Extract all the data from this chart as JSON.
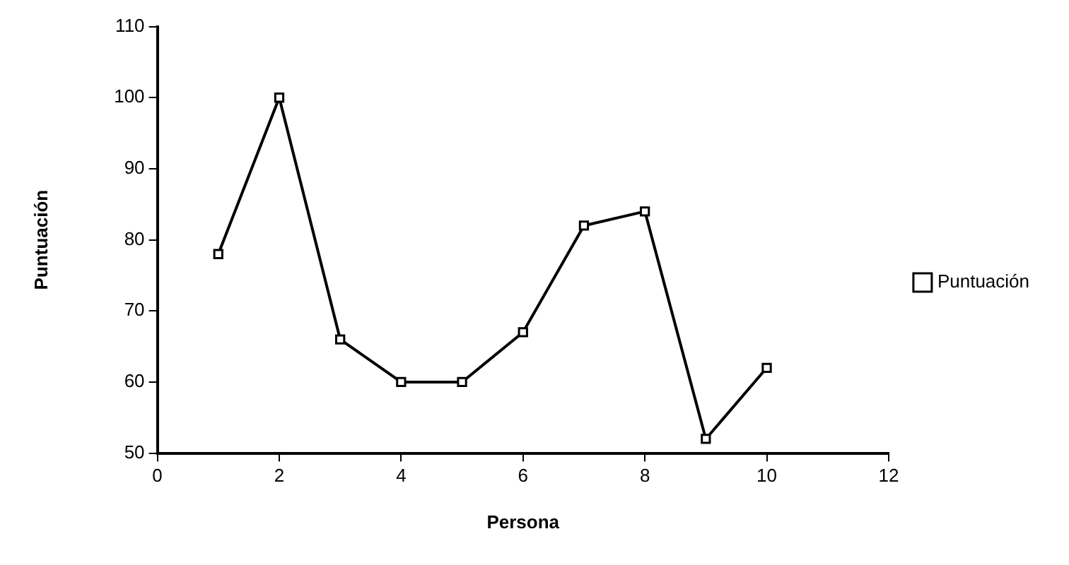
{
  "chart_data": {
    "type": "line",
    "xlabel": "Persona",
    "ylabel": "Puntuación",
    "x": [
      1,
      2,
      3,
      4,
      5,
      6,
      7,
      8,
      9,
      10
    ],
    "series": [
      {
        "name": "Puntuación",
        "color": "#000000",
        "values": [
          78,
          100,
          66,
          60,
          60,
          67,
          82,
          84,
          52,
          62
        ]
      }
    ],
    "xlim": [
      0,
      12
    ],
    "xticks": [
      0,
      2,
      4,
      6,
      8,
      10,
      12
    ],
    "ylim": [
      50,
      110
    ],
    "yticks": [
      50,
      60,
      70,
      80,
      90,
      100,
      110
    ],
    "grid": false,
    "legend": "right",
    "marker": "square",
    "line_style": "solid"
  }
}
